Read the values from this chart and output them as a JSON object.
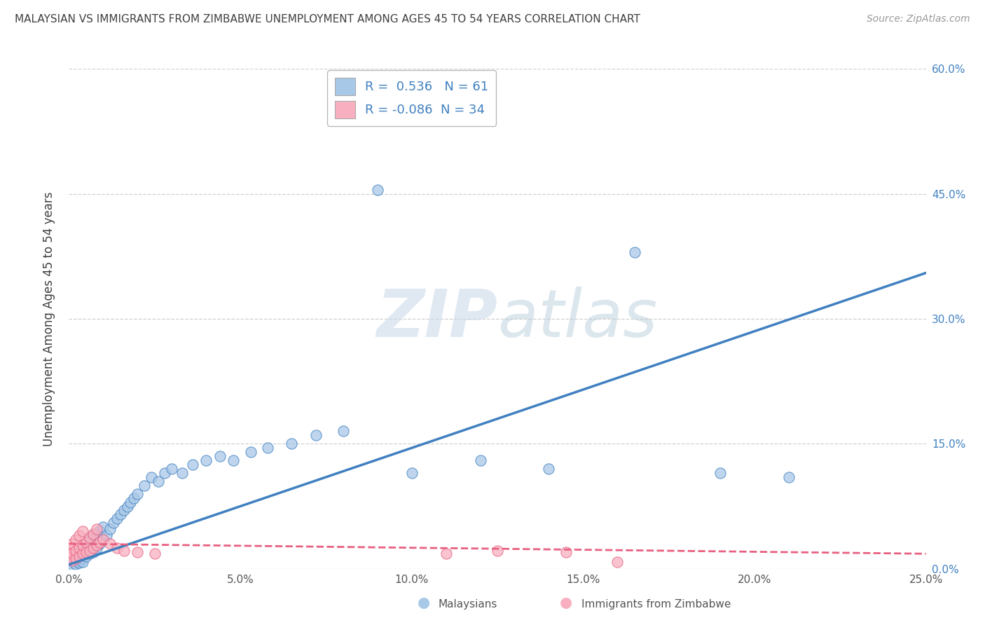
{
  "title": "MALAYSIAN VS IMMIGRANTS FROM ZIMBABWE UNEMPLOYMENT AMONG AGES 45 TO 54 YEARS CORRELATION CHART",
  "source": "Source: ZipAtlas.com",
  "ylabel": "Unemployment Among Ages 45 to 54 years",
  "watermark": "ZIPatlas",
  "xlim": [
    0.0,
    0.25
  ],
  "ylim": [
    0.0,
    0.6
  ],
  "xticks": [
    0.0,
    0.05,
    0.1,
    0.15,
    0.2,
    0.25
  ],
  "xticklabels": [
    "0.0%",
    "5.0%",
    "10.0%",
    "15.0%",
    "20.0%",
    "25.0%"
  ],
  "yticks_right": [
    0.0,
    0.15,
    0.3,
    0.45,
    0.6
  ],
  "yticklabels_right": [
    "0.0%",
    "15.0%",
    "30.0%",
    "45.0%",
    "60.0%"
  ],
  "R_malaysian": 0.536,
  "N_malaysian": 61,
  "R_zimbabwe": -0.086,
  "N_zimbabwe": 34,
  "color_malaysian": "#a8c8e8",
  "color_zimbabwe": "#f8b0c0",
  "color_line_malaysian": "#4080c0",
  "color_line_zimbabwe": "#e86080",
  "background_color": "#ffffff",
  "grid_color": "#d0d0d0",
  "title_color": "#404040",
  "legend_label_malaysian": "Malaysians",
  "legend_label_zimbabwe": "Immigrants from Zimbabwe",
  "trend_m_x0": 0.0,
  "trend_m_y0": 0.005,
  "trend_m_x1": 0.25,
  "trend_m_y1": 0.355,
  "trend_z_x0": 0.0,
  "trend_z_y0": 0.03,
  "trend_z_x1": 0.25,
  "trend_z_y1": 0.018,
  "malaysian_x": [
    0.001,
    0.001,
    0.001,
    0.002,
    0.002,
    0.002,
    0.002,
    0.003,
    0.003,
    0.003,
    0.003,
    0.004,
    0.004,
    0.004,
    0.005,
    0.005,
    0.005,
    0.006,
    0.006,
    0.006,
    0.007,
    0.007,
    0.007,
    0.008,
    0.008,
    0.009,
    0.009,
    0.01,
    0.01,
    0.011,
    0.012,
    0.013,
    0.014,
    0.015,
    0.016,
    0.017,
    0.018,
    0.019,
    0.02,
    0.022,
    0.024,
    0.026,
    0.028,
    0.03,
    0.033,
    0.036,
    0.04,
    0.044,
    0.048,
    0.053,
    0.058,
    0.065,
    0.072,
    0.08,
    0.09,
    0.1,
    0.12,
    0.14,
    0.165,
    0.19,
    0.21
  ],
  "malaysian_y": [
    0.005,
    0.01,
    0.003,
    0.008,
    0.012,
    0.006,
    0.015,
    0.01,
    0.018,
    0.007,
    0.02,
    0.012,
    0.025,
    0.008,
    0.015,
    0.022,
    0.03,
    0.018,
    0.025,
    0.035,
    0.02,
    0.028,
    0.04,
    0.025,
    0.038,
    0.03,
    0.045,
    0.035,
    0.05,
    0.04,
    0.048,
    0.055,
    0.06,
    0.065,
    0.07,
    0.075,
    0.08,
    0.085,
    0.09,
    0.1,
    0.11,
    0.105,
    0.115,
    0.12,
    0.115,
    0.125,
    0.13,
    0.135,
    0.13,
    0.14,
    0.145,
    0.15,
    0.16,
    0.165,
    0.455,
    0.115,
    0.13,
    0.12,
    0.38,
    0.115,
    0.11
  ],
  "zimbabwe_x": [
    0.0003,
    0.0005,
    0.0008,
    0.001,
    0.001,
    0.001,
    0.002,
    0.002,
    0.002,
    0.003,
    0.003,
    0.003,
    0.004,
    0.004,
    0.004,
    0.005,
    0.005,
    0.006,
    0.006,
    0.007,
    0.007,
    0.008,
    0.008,
    0.009,
    0.01,
    0.012,
    0.014,
    0.016,
    0.02,
    0.025,
    0.11,
    0.125,
    0.145,
    0.16
  ],
  "zimbabwe_y": [
    0.02,
    0.015,
    0.025,
    0.01,
    0.018,
    0.03,
    0.012,
    0.022,
    0.035,
    0.015,
    0.025,
    0.04,
    0.018,
    0.028,
    0.045,
    0.02,
    0.032,
    0.022,
    0.038,
    0.025,
    0.042,
    0.028,
    0.048,
    0.032,
    0.035,
    0.03,
    0.025,
    0.022,
    0.02,
    0.018,
    0.018,
    0.022,
    0.02,
    0.008
  ]
}
